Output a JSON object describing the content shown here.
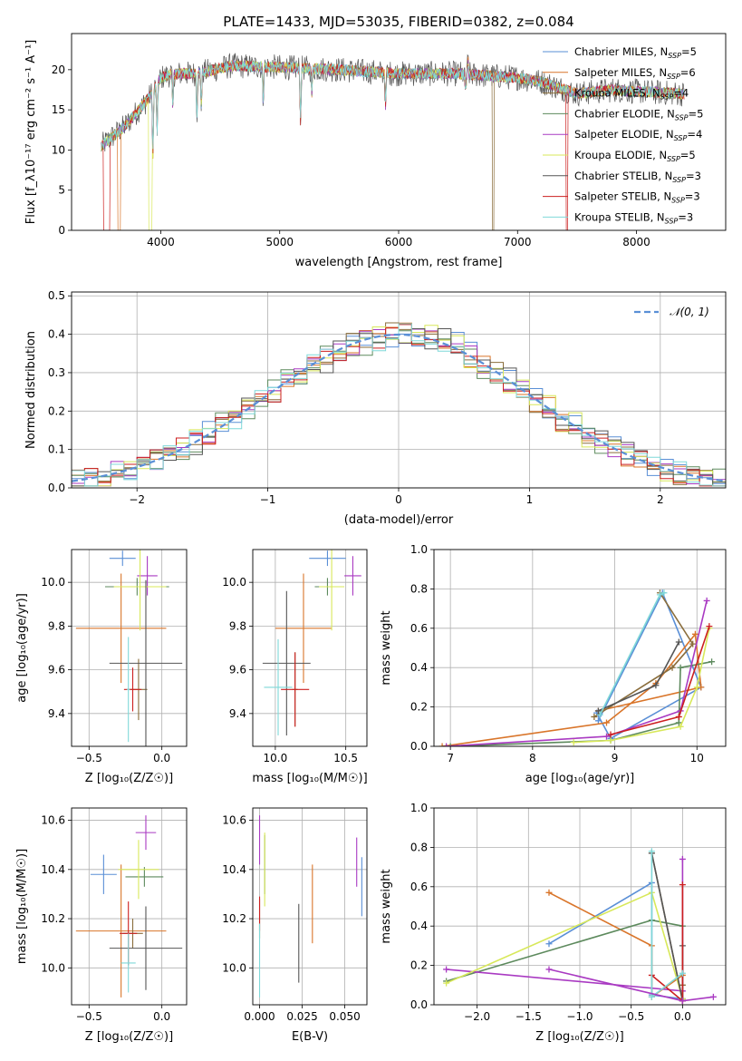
{
  "figure": {
    "title": "PLATE=1433, MJD=53035, FIBERID=0382, z=0.084"
  },
  "colors": {
    "Chabrier MILES": "#5a8fd6",
    "Salpeter MILES": "#d9752a",
    "Kroupa MILES": "#8a6d3b",
    "Chabrier ELODIE": "#5d8a5d",
    "Salpeter ELODIE": "#a93ac2",
    "Kroupa ELODIE": "#d8e85a",
    "Chabrier STELIB": "#555555",
    "Salpeter STELIB": "#cc1f1f",
    "Kroupa STELIB": "#7fd8d8",
    "gauss": "#5a8fd6",
    "grid": "#b0b0b0"
  },
  "chart_data": [
    {
      "type": "line",
      "panel": "spectrum",
      "xlabel": "wavelength [Angstrom, rest frame]",
      "ylabel": "Flux [f_λ10⁻¹⁷ erg cm⁻² s⁻¹ A⁻¹]",
      "xlim": [
        3250,
        8750
      ],
      "ylim": [
        0,
        24.5
      ],
      "xticks": [
        "4000",
        "5000",
        "6000",
        "7000",
        "8000"
      ],
      "yticks": [
        "0",
        "5",
        "10",
        "15",
        "20"
      ],
      "legend_position": "top-right",
      "legend": [
        {
          "name": "Chabrier MILES, N",
          "sub": "SSP",
          "suffix": "=5"
        },
        {
          "name": "Salpeter MILES, N",
          "sub": "SSP",
          "suffix": "=6"
        },
        {
          "name": "Kroupa MILES, N",
          "sub": "SSP",
          "suffix": "=4"
        },
        {
          "name": "Chabrier ELODIE, N",
          "sub": "SSP",
          "suffix": "=5"
        },
        {
          "name": "Salpeter ELODIE, N",
          "sub": "SSP",
          "suffix": "=4"
        },
        {
          "name": "Kroupa ELODIE, N",
          "sub": "SSP",
          "suffix": "=5"
        },
        {
          "name": "Chabrier STELIB, N",
          "sub": "SSP",
          "suffix": "=3"
        },
        {
          "name": "Salpeter STELIB, N",
          "sub": "SSP",
          "suffix": "=3"
        },
        {
          "name": "Kroupa STELIB, N",
          "sub": "SSP",
          "suffix": "=3"
        }
      ],
      "continuum": [
        [
          3500,
          10.5
        ],
        [
          3700,
          13.0
        ],
        [
          3900,
          16.5
        ],
        [
          4000,
          19.0
        ],
        [
          4100,
          19.5
        ],
        [
          4300,
          19.5
        ],
        [
          4600,
          20.5
        ],
        [
          5000,
          20.3
        ],
        [
          5500,
          20.0
        ],
        [
          6000,
          19.5
        ],
        [
          6500,
          19.5
        ],
        [
          7000,
          19.0
        ],
        [
          7200,
          18.5
        ],
        [
          7500,
          17.0
        ],
        [
          7800,
          17.5
        ],
        [
          8000,
          17.3
        ],
        [
          8400,
          17.0
        ]
      ],
      "absorption_features": [
        [
          3934,
          8.0
        ],
        [
          3969,
          6.0
        ],
        [
          4102,
          4.0
        ],
        [
          4304,
          5.0
        ],
        [
          4341,
          4.0
        ],
        [
          4861,
          4.0
        ],
        [
          5175,
          6.5
        ],
        [
          5270,
          3.0
        ],
        [
          5890,
          4.0
        ],
        [
          6563,
          4.0
        ],
        [
          8498,
          3.0
        ],
        [
          8542,
          4.0
        ],
        [
          8662,
          4.0
        ]
      ],
      "emission_features": [
        [
          6563,
          3.0
        ],
        [
          6583,
          2.0
        ]
      ],
      "model_dropouts": [
        [
          3520,
          3570,
          "Salpeter STELIB"
        ],
        [
          3640,
          3660,
          "Salpeter MILES"
        ],
        [
          3900,
          3925,
          "Kroupa ELODIE"
        ],
        [
          6790,
          6800,
          "Kroupa MILES"
        ],
        [
          7410,
          7420,
          "Salpeter STELIB"
        ]
      ],
      "wavelength_range": [
        3500,
        8400
      ]
    },
    {
      "type": "bar",
      "panel": "residual-histogram",
      "xlabel": "(data-model)/error",
      "ylabel": "Normed distribution",
      "xlim": [
        -2.5,
        2.5
      ],
      "ylim": [
        0,
        0.51
      ],
      "xticks": [
        "−2",
        "−1",
        "0",
        "1",
        "2"
      ],
      "yticks": [
        "0.0",
        "0.1",
        "0.2",
        "0.3",
        "0.4",
        "0.5"
      ],
      "bin_width": 0.1,
      "legend_position": "top-right",
      "gauss_label": "𝒩(0, 1)",
      "gauss": {
        "mean": 0,
        "sigma": 1
      }
    },
    {
      "type": "scatter",
      "panel": "age-vs-Z",
      "xlabel": "Z [log₁₀(Z/Z☉)]",
      "ylabel": "age  [log₁₀(age/yr)]",
      "xlim": [
        -0.62,
        0.17
      ],
      "ylim": [
        9.25,
        10.15
      ],
      "xticks": [
        "−0.5",
        "0.0"
      ],
      "yticks": [
        "9.4",
        "9.6",
        "9.8",
        "10.0"
      ],
      "series": [
        {
          "name": "Chabrier MILES",
          "x": -0.27,
          "y": 10.11,
          "xerr": 0.09,
          "yerr": 0.035
        },
        {
          "name": "Salpeter MILES",
          "x": -0.28,
          "y": 9.79,
          "xerr": 0.31,
          "yerr": 0.25
        },
        {
          "name": "Kroupa MILES",
          "x": -0.16,
          "y": 9.51,
          "xerr": 0.06,
          "yerr": 0.14
        },
        {
          "name": "Chabrier ELODIE",
          "x": -0.17,
          "y": 9.98,
          "xerr": 0.22,
          "yerr": 0.04
        },
        {
          "name": "Salpeter ELODIE",
          "x": -0.1,
          "y": 10.03,
          "xerr": 0.07,
          "yerr": 0.09
        },
        {
          "name": "Kroupa ELODIE",
          "x": -0.15,
          "y": 9.98,
          "xerr": 0.18,
          "yerr": 0.2
        },
        {
          "name": "Chabrier STELIB",
          "x": -0.11,
          "y": 9.63,
          "xerr": 0.25,
          "yerr": 0.38
        },
        {
          "name": "Salpeter STELIB",
          "x": -0.2,
          "y": 9.51,
          "xerr": 0.06,
          "yerr": 0.1
        },
        {
          "name": "Kroupa STELIB",
          "x": -0.23,
          "y": 9.51,
          "xerr": 0.01,
          "yerr": 0.24
        }
      ]
    },
    {
      "type": "scatter",
      "panel": "age-vs-mass",
      "xlabel": "mass [log₁₀(M/M☉)]",
      "ylabel": "",
      "xlim": [
        9.84,
        10.65
      ],
      "ylim": [
        9.25,
        10.15
      ],
      "xticks": [
        "10.0",
        "10.5"
      ],
      "yticks": [
        "9.4",
        "9.6",
        "9.8",
        "10.0"
      ],
      "series": [
        {
          "name": "Chabrier MILES",
          "x": 10.37,
          "y": 10.11,
          "xerr": 0.13,
          "yerr": 0.035
        },
        {
          "name": "Salpeter MILES",
          "x": 10.2,
          "y": 9.79,
          "xerr": 0.2,
          "yerr": 0.25
        },
        {
          "name": "Kroupa MILES",
          "x": 10.14,
          "y": 9.51,
          "xerr": 0.02,
          "yerr": 0.17
        },
        {
          "name": "Chabrier ELODIE",
          "x": 10.37,
          "y": 9.98,
          "xerr": 0.09,
          "yerr": 0.04
        },
        {
          "name": "Salpeter ELODIE",
          "x": 10.55,
          "y": 10.03,
          "xerr": 0.06,
          "yerr": 0.09
        },
        {
          "name": "Kroupa ELODIE",
          "x": 10.4,
          "y": 9.98,
          "xerr": 0.09,
          "yerr": 0.2
        },
        {
          "name": "Chabrier STELIB",
          "x": 10.08,
          "y": 9.63,
          "xerr": 0.17,
          "yerr": 0.33
        },
        {
          "name": "Salpeter STELIB",
          "x": 10.14,
          "y": 9.51,
          "xerr": 0.1,
          "yerr": 0.17
        },
        {
          "name": "Kroupa STELIB",
          "x": 10.02,
          "y": 9.52,
          "xerr": 0.1,
          "yerr": 0.22
        }
      ]
    },
    {
      "type": "line",
      "panel": "mass-weight-vs-age",
      "xlabel": "age  [log₁₀(age/yr)]",
      "ylabel": "mass weight",
      "xlim": [
        6.8,
        10.35
      ],
      "ylim": [
        0,
        1.0
      ],
      "xticks": [
        "7",
        "8",
        "9",
        "10"
      ],
      "yticks": [
        "0.0",
        "0.2",
        "0.4",
        "0.6",
        "0.8",
        "1.0"
      ],
      "series": [
        {
          "name": "Chabrier MILES",
          "x": [
            8.78,
            8.95,
            10.05,
            9.58,
            8.8
          ],
          "y": [
            0.17,
            0.04,
            0.3,
            0.78,
            0.13
          ]
        },
        {
          "name": "Salpeter MILES",
          "x": [
            6.9,
            8.9,
            9.5,
            9.98,
            10.05,
            8.8
          ],
          "y": [
            0.0,
            0.12,
            0.32,
            0.57,
            0.3,
            0.18
          ]
        },
        {
          "name": "Kroupa MILES",
          "x": [
            8.75,
            9.7,
            9.95,
            9.55
          ],
          "y": [
            0.15,
            0.4,
            0.52,
            0.78
          ]
        },
        {
          "name": "Chabrier ELODIE",
          "x": [
            7.0,
            8.95,
            9.78,
            9.8,
            10.18
          ],
          "y": [
            0.0,
            0.03,
            0.12,
            0.4,
            0.43
          ]
        },
        {
          "name": "Salpeter ELODIE",
          "x": [
            6.95,
            8.9,
            9.8,
            10.12
          ],
          "y": [
            0.0,
            0.05,
            0.18,
            0.74
          ]
        },
        {
          "name": "Kroupa ELODIE",
          "x": [
            8.5,
            8.95,
            9.8,
            10.0,
            10.15
          ],
          "y": [
            0.02,
            0.03,
            0.1,
            0.3,
            0.6
          ]
        },
        {
          "name": "Chabrier STELIB",
          "x": [
            8.8,
            9.5,
            9.78
          ],
          "y": [
            0.18,
            0.31,
            0.53
          ]
        },
        {
          "name": "Salpeter STELIB",
          "x": [
            8.95,
            9.78,
            10.15
          ],
          "y": [
            0.06,
            0.15,
            0.61
          ]
        },
        {
          "name": "Kroupa STELIB",
          "x": [
            8.82,
            9.55,
            9.6
          ],
          "y": [
            0.16,
            0.77,
            0.78
          ]
        }
      ]
    },
    {
      "type": "scatter",
      "panel": "mass-vs-Z",
      "xlabel": "Z [log₁₀(Z/Z☉)]",
      "ylabel": "mass [log₁₀(M/M☉)]",
      "xlim": [
        -0.62,
        0.17
      ],
      "ylim": [
        9.85,
        10.65
      ],
      "xticks": [
        "−0.5",
        "0.0"
      ],
      "yticks": [
        "10.0",
        "10.2",
        "10.4",
        "10.6"
      ],
      "series": [
        {
          "name": "Chabrier MILES",
          "x": -0.4,
          "y": 10.38,
          "xerr": 0.09,
          "yerr": 0.08
        },
        {
          "name": "Salpeter MILES",
          "x": -0.28,
          "y": 10.15,
          "xerr": 0.31,
          "yerr": 0.27
        },
        {
          "name": "Kroupa MILES",
          "x": -0.2,
          "y": 10.14,
          "xerr": 0.07,
          "yerr": 0.06
        },
        {
          "name": "Chabrier ELODIE",
          "x": -0.12,
          "y": 10.37,
          "xerr": 0.13,
          "yerr": 0.04
        },
        {
          "name": "Salpeter ELODIE",
          "x": -0.11,
          "y": 10.55,
          "xerr": 0.07,
          "yerr": 0.07
        },
        {
          "name": "Kroupa ELODIE",
          "x": -0.16,
          "y": 10.4,
          "xerr": 0.14,
          "yerr": 0.12
        },
        {
          "name": "Chabrier STELIB",
          "x": -0.11,
          "y": 10.08,
          "xerr": 0.25,
          "yerr": 0.17
        },
        {
          "name": "Salpeter STELIB",
          "x": -0.23,
          "y": 10.14,
          "xerr": 0.06,
          "yerr": 0.13
        },
        {
          "name": "Kroupa STELIB",
          "x": -0.23,
          "y": 10.02,
          "xerr": 0.05,
          "yerr": 0.12
        }
      ]
    },
    {
      "type": "scatter",
      "panel": "mass-vs-EBV",
      "xlabel": "E(B-V)",
      "ylabel": "",
      "xlim": [
        -0.004,
        0.063
      ],
      "ylim": [
        9.85,
        10.65
      ],
      "xticks": [
        "0.000",
        "0.025",
        "0.050"
      ],
      "yticks": [
        "10.0",
        "10.2",
        "10.4",
        "10.6"
      ],
      "series": [
        {
          "name": "Chabrier MILES",
          "x": 0.06,
          "y": 10.33,
          "xerr": 0.0,
          "yerr": 0.12
        },
        {
          "name": "Salpeter MILES",
          "x": 0.031,
          "y": 10.26,
          "xerr": 0.0,
          "yerr": 0.16
        },
        {
          "name": "Kroupa MILES",
          "x": 0.0,
          "y": 10.2,
          "xerr": 0.0,
          "yerr": 0.08
        },
        {
          "name": "Chabrier ELODIE",
          "x": 0.003,
          "y": 10.42,
          "xerr": 0.0,
          "yerr": 0.12
        },
        {
          "name": "Salpeter ELODIE",
          "x": 0.0,
          "y": 10.52,
          "xerr": 0.0,
          "yerr": 0.1
        },
        {
          "name": "Kroupa ELODIE",
          "x": 0.003,
          "y": 10.4,
          "xerr": 0.0,
          "yerr": 0.15
        },
        {
          "name": "Chabrier STELIB",
          "x": 0.023,
          "y": 10.1,
          "xerr": 0.0,
          "yerr": 0.16
        },
        {
          "name": "Salpeter STELIB",
          "x": 0.0,
          "y": 10.22,
          "xerr": 0.0,
          "yerr": 0.07
        },
        {
          "name": "Kroupa STELIB",
          "x": 0.0,
          "y": 10.03,
          "xerr": 0.0,
          "yerr": 0.15
        },
        {
          "name": "Salpeter ELODIE",
          "x": 0.057,
          "y": 10.43,
          "xerr": 0.0,
          "yerr": 0.1
        }
      ]
    },
    {
      "type": "line",
      "panel": "mass-weight-vs-Z",
      "xlabel": "Z [log₁₀(Z/Z☉)]",
      "ylabel": "mass weight",
      "xlim": [
        -2.42,
        0.42
      ],
      "ylim": [
        0,
        1.0
      ],
      "xticks": [
        "−2.0",
        "−1.5",
        "−1.0",
        "−0.5",
        "0.0"
      ],
      "yticks": [
        "0.0",
        "0.2",
        "0.4",
        "0.6",
        "0.8",
        "1.0"
      ],
      "series": [
        {
          "name": "Chabrier MILES",
          "x": [
            -1.3,
            -0.3,
            -0.3,
            0.0
          ],
          "y": [
            0.31,
            0.62,
            0.05,
            0.03
          ]
        },
        {
          "name": "Salpeter MILES",
          "x": [
            -1.3,
            -0.3,
            -0.3,
            0.0
          ],
          "y": [
            0.57,
            0.3,
            0.04,
            0.15
          ]
        },
        {
          "name": "Kroupa MILES",
          "x": [
            -0.3,
            0.0,
            0.0
          ],
          "y": [
            0.77,
            0.02,
            0.1
          ]
        },
        {
          "name": "Chabrier ELODIE",
          "x": [
            -2.3,
            -0.3,
            0.0,
            0.0
          ],
          "y": [
            0.12,
            0.43,
            0.4,
            0.03
          ]
        },
        {
          "name": "Salpeter ELODIE",
          "x": [
            -2.3,
            0.0,
            0.0
          ],
          "y": [
            0.18,
            0.07,
            0.74
          ]
        },
        {
          "name": "Kroupa ELODIE",
          "x": [
            -2.3,
            -0.3,
            0.0
          ],
          "y": [
            0.11,
            0.57,
            0.03
          ]
        },
        {
          "name": "Chabrier STELIB",
          "x": [
            -0.3,
            0.0,
            0.0
          ],
          "y": [
            0.77,
            0.02,
            0.3
          ]
        },
        {
          "name": "Salpeter STELIB",
          "x": [
            -0.3,
            0.0,
            0.0
          ],
          "y": [
            0.15,
            0.02,
            0.61
          ]
        },
        {
          "name": "Kroupa STELIB",
          "x": [
            -0.3,
            -0.3,
            0.0
          ],
          "y": [
            0.78,
            0.04,
            0.16
          ]
        },
        {
          "name": "Salpeter ELODIE",
          "x": [
            -1.3,
            0.0,
            0.3
          ],
          "y": [
            0.18,
            0.02,
            0.04
          ]
        }
      ]
    }
  ]
}
